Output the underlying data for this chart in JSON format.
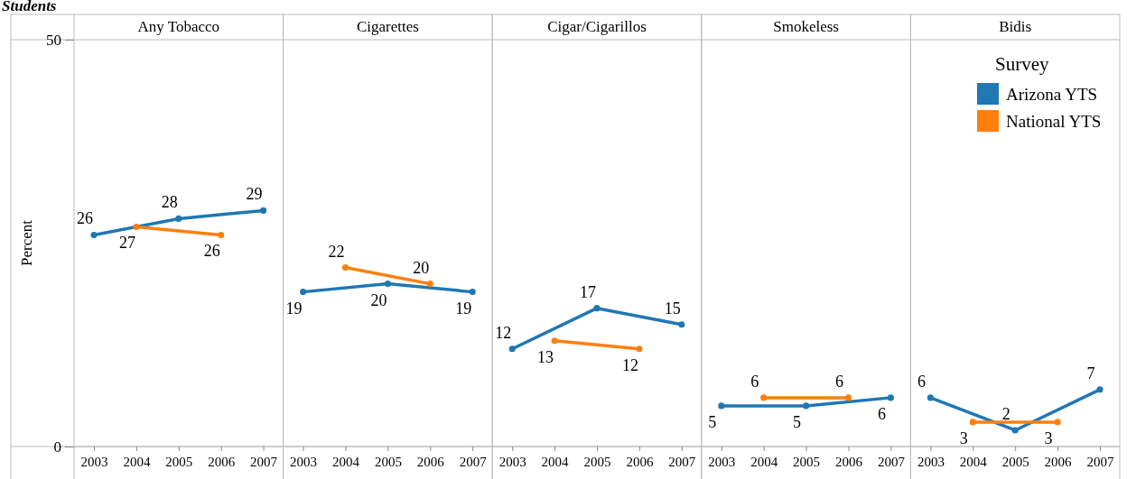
{
  "chart_data": [
    {
      "type": "line",
      "title": "Any Tobacco",
      "ylabel": "Percent",
      "annotations": [
        "Students"
      ],
      "categories": [
        "2003",
        "2004",
        "2005",
        "2006",
        "2007"
      ],
      "ylim": [
        0,
        50
      ],
      "yticks": [
        0,
        50
      ],
      "grid": false,
      "marker": "circle",
      "data_labels": true,
      "series": [
        {
          "color": "#1f77b4",
          "values": [
            26,
            null,
            28,
            null,
            29
          ]
        },
        {
          "color": "#ff7f0e",
          "values": [
            null,
            27,
            null,
            26,
            null
          ]
        }
      ]
    },
    {
      "type": "line",
      "title": "Cigarettes",
      "categories": [
        "2003",
        "2004",
        "2005",
        "2006",
        "2007"
      ],
      "ylim": [
        0,
        50
      ],
      "tick_labels": "x",
      "grid": false,
      "marker": "circle",
      "data_labels": true,
      "series": [
        {
          "color": "#1f77b4",
          "values": [
            19,
            null,
            20,
            null,
            19
          ]
        },
        {
          "color": "#ff7f0e",
          "values": [
            null,
            22,
            null,
            20,
            null
          ]
        }
      ]
    },
    {
      "type": "line",
      "title": "Cigar/Cigarillos",
      "categories": [
        "2003",
        "2004",
        "2005",
        "2006",
        "2007"
      ],
      "ylim": [
        0,
        50
      ],
      "tick_labels": "x",
      "grid": false,
      "marker": "circle",
      "data_labels": true,
      "series": [
        {
          "color": "#1f77b4",
          "values": [
            12,
            null,
            17,
            null,
            15
          ]
        },
        {
          "color": "#ff7f0e",
          "values": [
            null,
            13,
            null,
            12,
            null
          ]
        }
      ]
    },
    {
      "type": "line",
      "title": "Smokeless",
      "categories": [
        "2003",
        "2004",
        "2005",
        "2006",
        "2007"
      ],
      "ylim": [
        0,
        50
      ],
      "tick_labels": "x",
      "grid": false,
      "marker": "circle",
      "data_labels": true,
      "series": [
        {
          "color": "#1f77b4",
          "values": [
            5,
            null,
            5,
            null,
            6
          ]
        },
        {
          "color": "#ff7f0e",
          "values": [
            null,
            6,
            null,
            6,
            null
          ]
        }
      ]
    },
    {
      "type": "line",
      "title": "Bidis",
      "legend_title": "Survey",
      "legend": "top right",
      "categories": [
        "2003",
        "2004",
        "2005",
        "2006",
        "2007"
      ],
      "ylim": [
        0,
        50
      ],
      "tick_labels": "x",
      "grid": false,
      "marker": "circle",
      "data_labels": true,
      "series": [
        {
          "name": "Arizona YTS",
          "color": "#1f77b4",
          "values": [
            6,
            null,
            2,
            null,
            7
          ]
        },
        {
          "name": "National YTS",
          "color": "#ff7f0e",
          "values": [
            null,
            3,
            null,
            3,
            null
          ]
        }
      ]
    }
  ]
}
